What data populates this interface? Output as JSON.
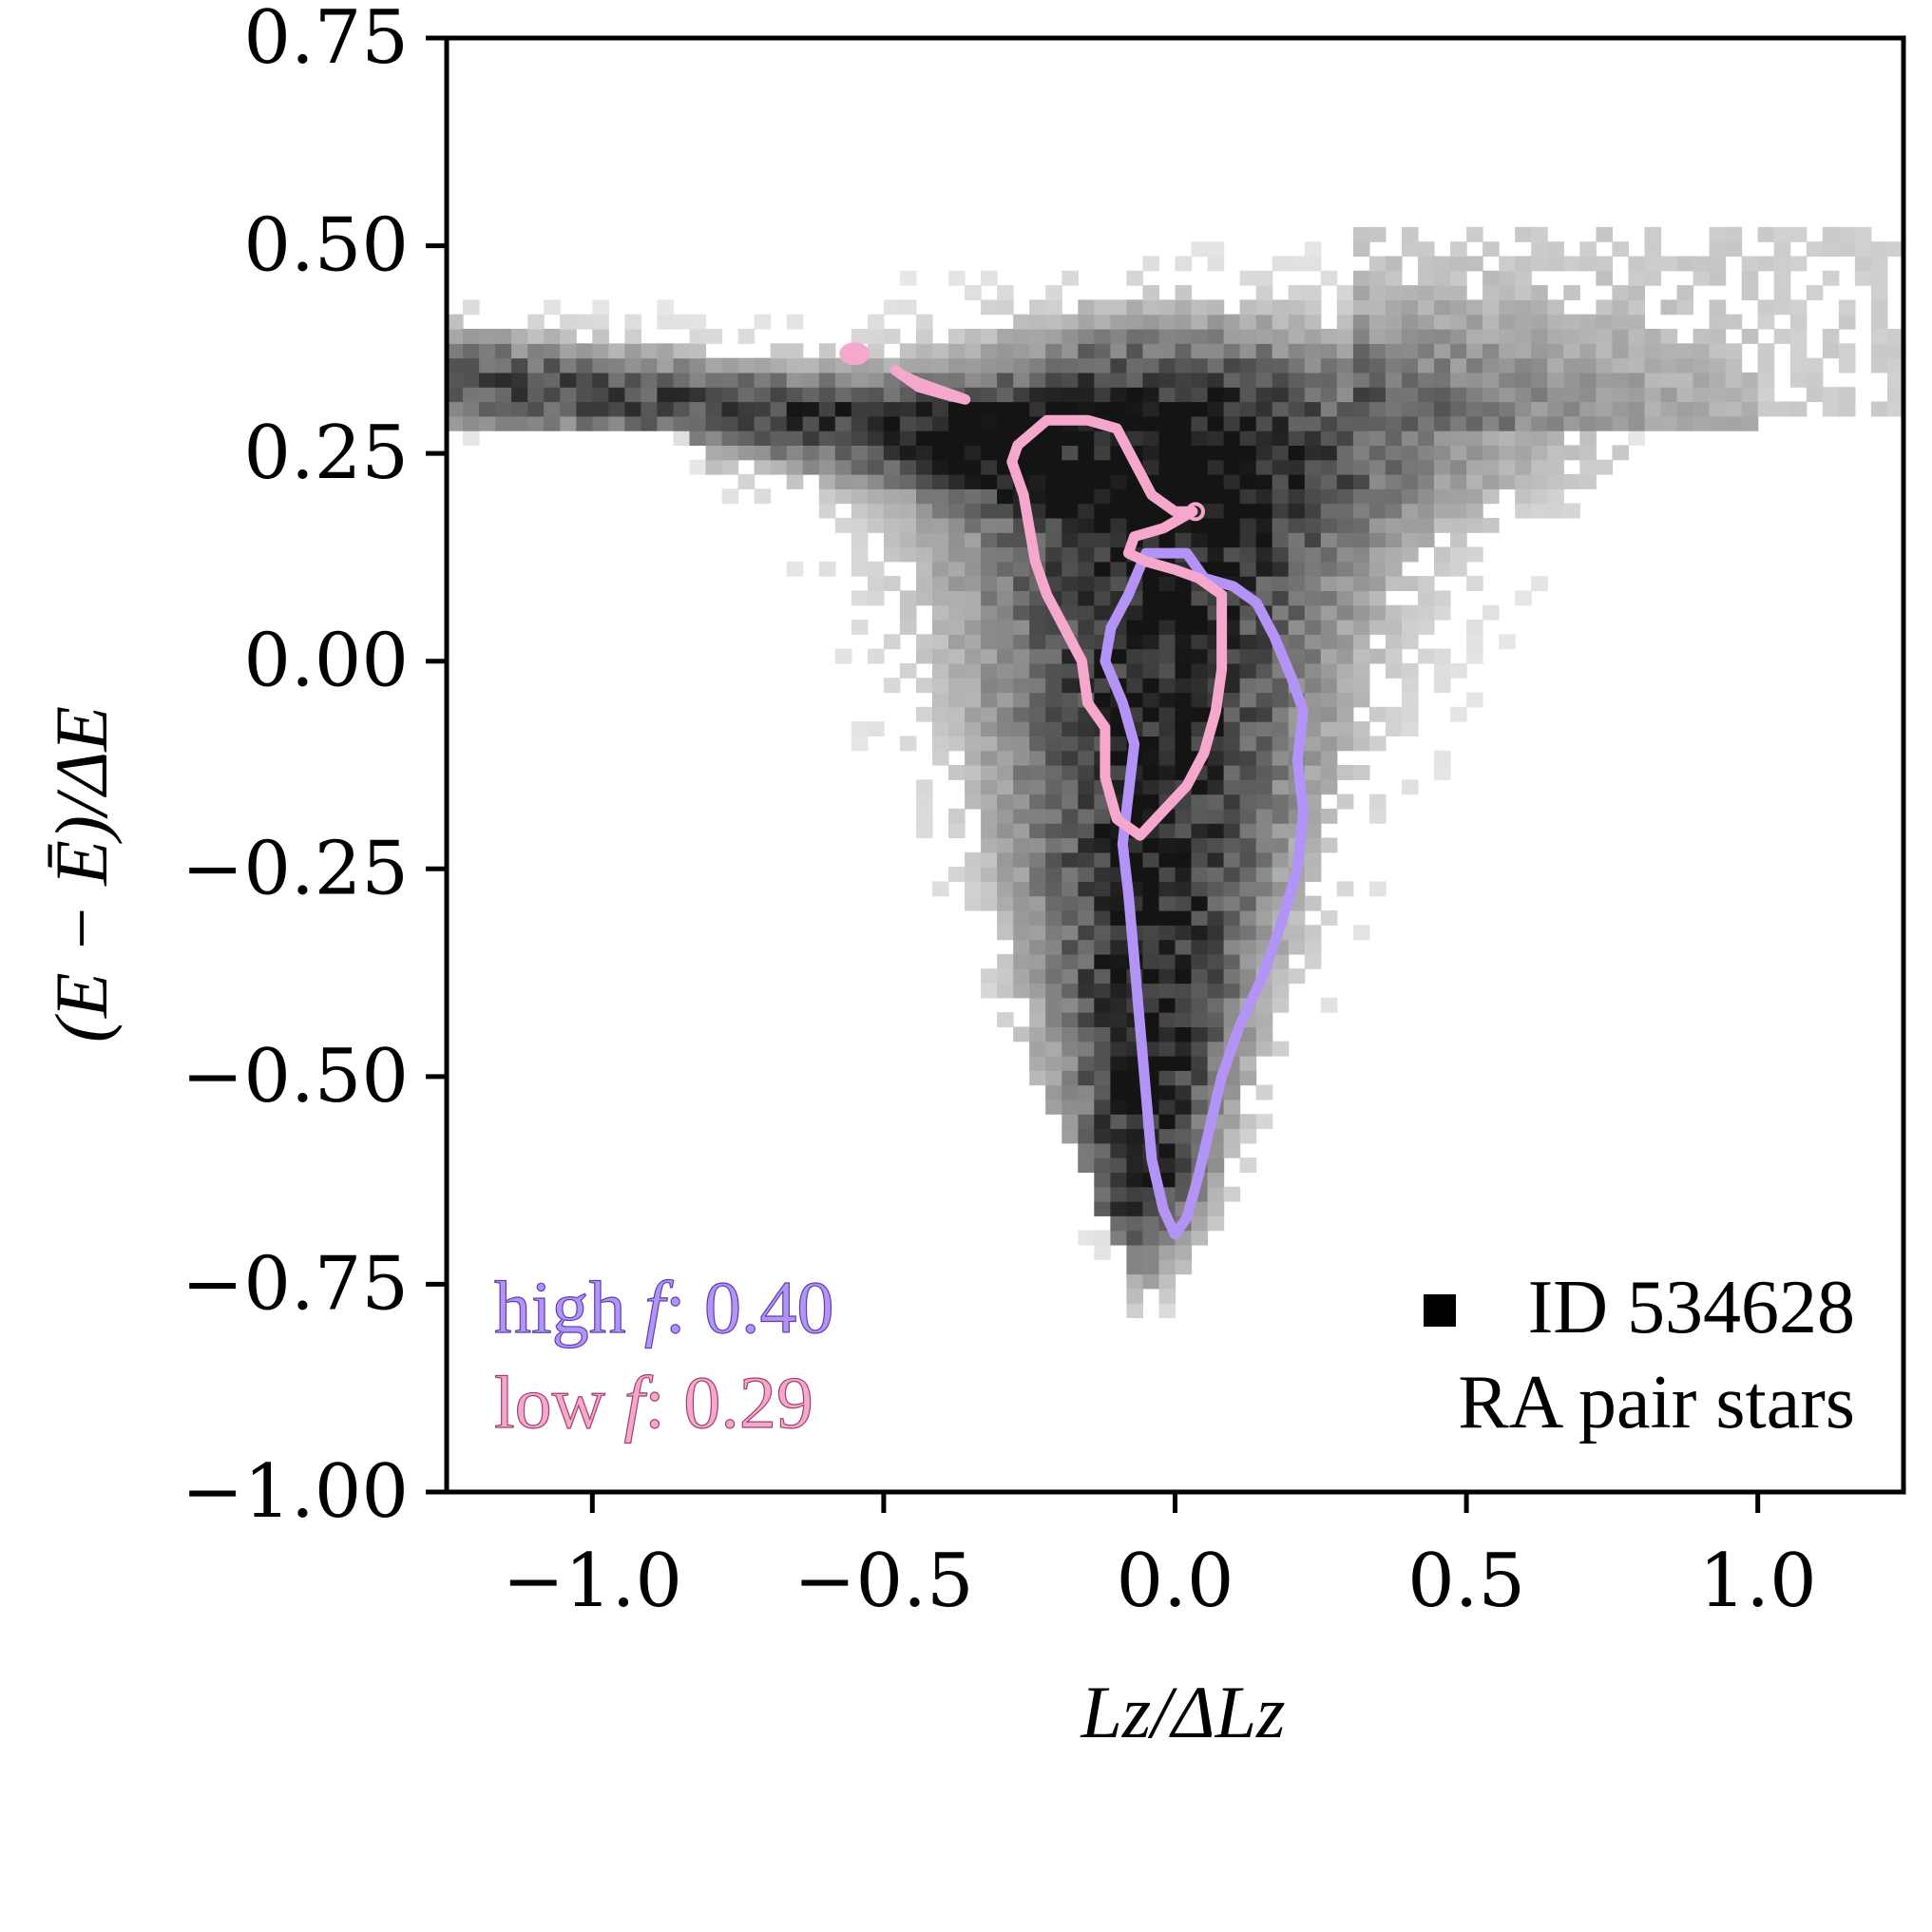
{
  "chart_data": {
    "type": "heatmap",
    "title": "",
    "xlabel": "Lz/ΔLz",
    "ylabel": "(E − Ē)/ΔE",
    "xlim": [
      -1.25,
      1.25
    ],
    "ylim": [
      -1.0,
      0.75
    ],
    "xticks": [
      -1.0,
      -0.5,
      0.0,
      0.5,
      1.0
    ],
    "xtick_labels": [
      "−1.0",
      "−0.5",
      "0.0",
      "0.5",
      "1.0"
    ],
    "yticks": [
      0.75,
      0.5,
      0.25,
      0.0,
      -0.25,
      -0.5,
      -0.75,
      -1.0
    ],
    "ytick_labels": [
      "0.75",
      "0.50",
      "0.25",
      "0.00",
      "−0.25",
      "−0.50",
      "−0.75",
      "−1.00"
    ],
    "colormap": "greys",
    "contours": [
      {
        "name": "high f",
        "color": "#b493f7",
        "path": [
          [
            -0.05,
            0.13
          ],
          [
            0.02,
            0.13
          ],
          [
            0.05,
            0.1
          ],
          [
            0.1,
            0.09
          ],
          [
            0.14,
            0.07
          ],
          [
            0.17,
            0.03
          ],
          [
            0.2,
            -0.02
          ],
          [
            0.22,
            -0.06
          ],
          [
            0.21,
            -0.12
          ],
          [
            0.22,
            -0.18
          ],
          [
            0.21,
            -0.25
          ],
          [
            0.18,
            -0.32
          ],
          [
            0.15,
            -0.38
          ],
          [
            0.11,
            -0.44
          ],
          [
            0.08,
            -0.5
          ],
          [
            0.06,
            -0.56
          ],
          [
            0.04,
            -0.62
          ],
          [
            0.02,
            -0.67
          ],
          [
            0.0,
            -0.69
          ],
          [
            -0.02,
            -0.66
          ],
          [
            -0.04,
            -0.6
          ],
          [
            -0.05,
            -0.52
          ],
          [
            -0.06,
            -0.44
          ],
          [
            -0.07,
            -0.36
          ],
          [
            -0.08,
            -0.28
          ],
          [
            -0.09,
            -0.22
          ],
          [
            -0.08,
            -0.16
          ],
          [
            -0.07,
            -0.1
          ],
          [
            -0.09,
            -0.05
          ],
          [
            -0.12,
            0.0
          ],
          [
            -0.11,
            0.04
          ],
          [
            -0.08,
            0.08
          ]
        ]
      },
      {
        "name": "low f",
        "color": "#f6a8cc",
        "path": [
          [
            -0.27,
            0.26
          ],
          [
            -0.22,
            0.29
          ],
          [
            -0.15,
            0.29
          ],
          [
            -0.1,
            0.28
          ],
          [
            -0.07,
            0.24
          ],
          [
            -0.04,
            0.2
          ],
          [
            0.0,
            0.18
          ],
          [
            0.03,
            0.18
          ],
          [
            -0.02,
            0.16
          ],
          [
            -0.07,
            0.15
          ],
          [
            -0.08,
            0.13
          ],
          [
            -0.05,
            0.12
          ],
          [
            0.0,
            0.11
          ],
          [
            0.04,
            0.1
          ],
          [
            0.08,
            0.08
          ],
          [
            0.08,
            0.04
          ],
          [
            0.08,
            -0.01
          ],
          [
            0.07,
            -0.06
          ],
          [
            0.05,
            -0.11
          ],
          [
            0.02,
            -0.15
          ],
          [
            -0.02,
            -0.18
          ],
          [
            -0.06,
            -0.21
          ],
          [
            -0.1,
            -0.19
          ],
          [
            -0.12,
            -0.14
          ],
          [
            -0.12,
            -0.08
          ],
          [
            -0.15,
            -0.05
          ],
          [
            -0.16,
            -0.0
          ],
          [
            -0.19,
            0.04
          ],
          [
            -0.22,
            0.08
          ],
          [
            -0.24,
            0.12
          ],
          [
            -0.25,
            0.16
          ],
          [
            -0.26,
            0.2
          ],
          [
            -0.28,
            0.24
          ]
        ]
      },
      {
        "name": "low f island",
        "color": "#f6a8cc",
        "path": [
          [
            -0.48,
            0.35
          ],
          [
            -0.44,
            0.33
          ],
          [
            -0.39,
            0.32
          ],
          [
            -0.36,
            0.315
          ],
          [
            -0.4,
            0.325
          ],
          [
            -0.44,
            0.335
          ],
          [
            -0.47,
            0.345
          ]
        ]
      }
    ],
    "markers": [
      {
        "name": "low f blob",
        "x": -0.55,
        "y": 0.37,
        "color": "#f6a8cc"
      },
      {
        "name": "low f small ring",
        "x": 0.035,
        "y": 0.18,
        "color": "#f6a8cc"
      }
    ],
    "legend": [
      {
        "prefix": "high ",
        "symbol": "f",
        "suffix": ": 0.40",
        "color": "#b493f7"
      },
      {
        "prefix": "low ",
        "symbol": "f",
        "suffix": ": 0.29",
        "color": "#f6a8cc"
      }
    ],
    "legend_position": "bottom-left",
    "annotation": {
      "line1": "ID 534628",
      "line2": "RA pair stars"
    },
    "annotation_position": "bottom-right"
  }
}
